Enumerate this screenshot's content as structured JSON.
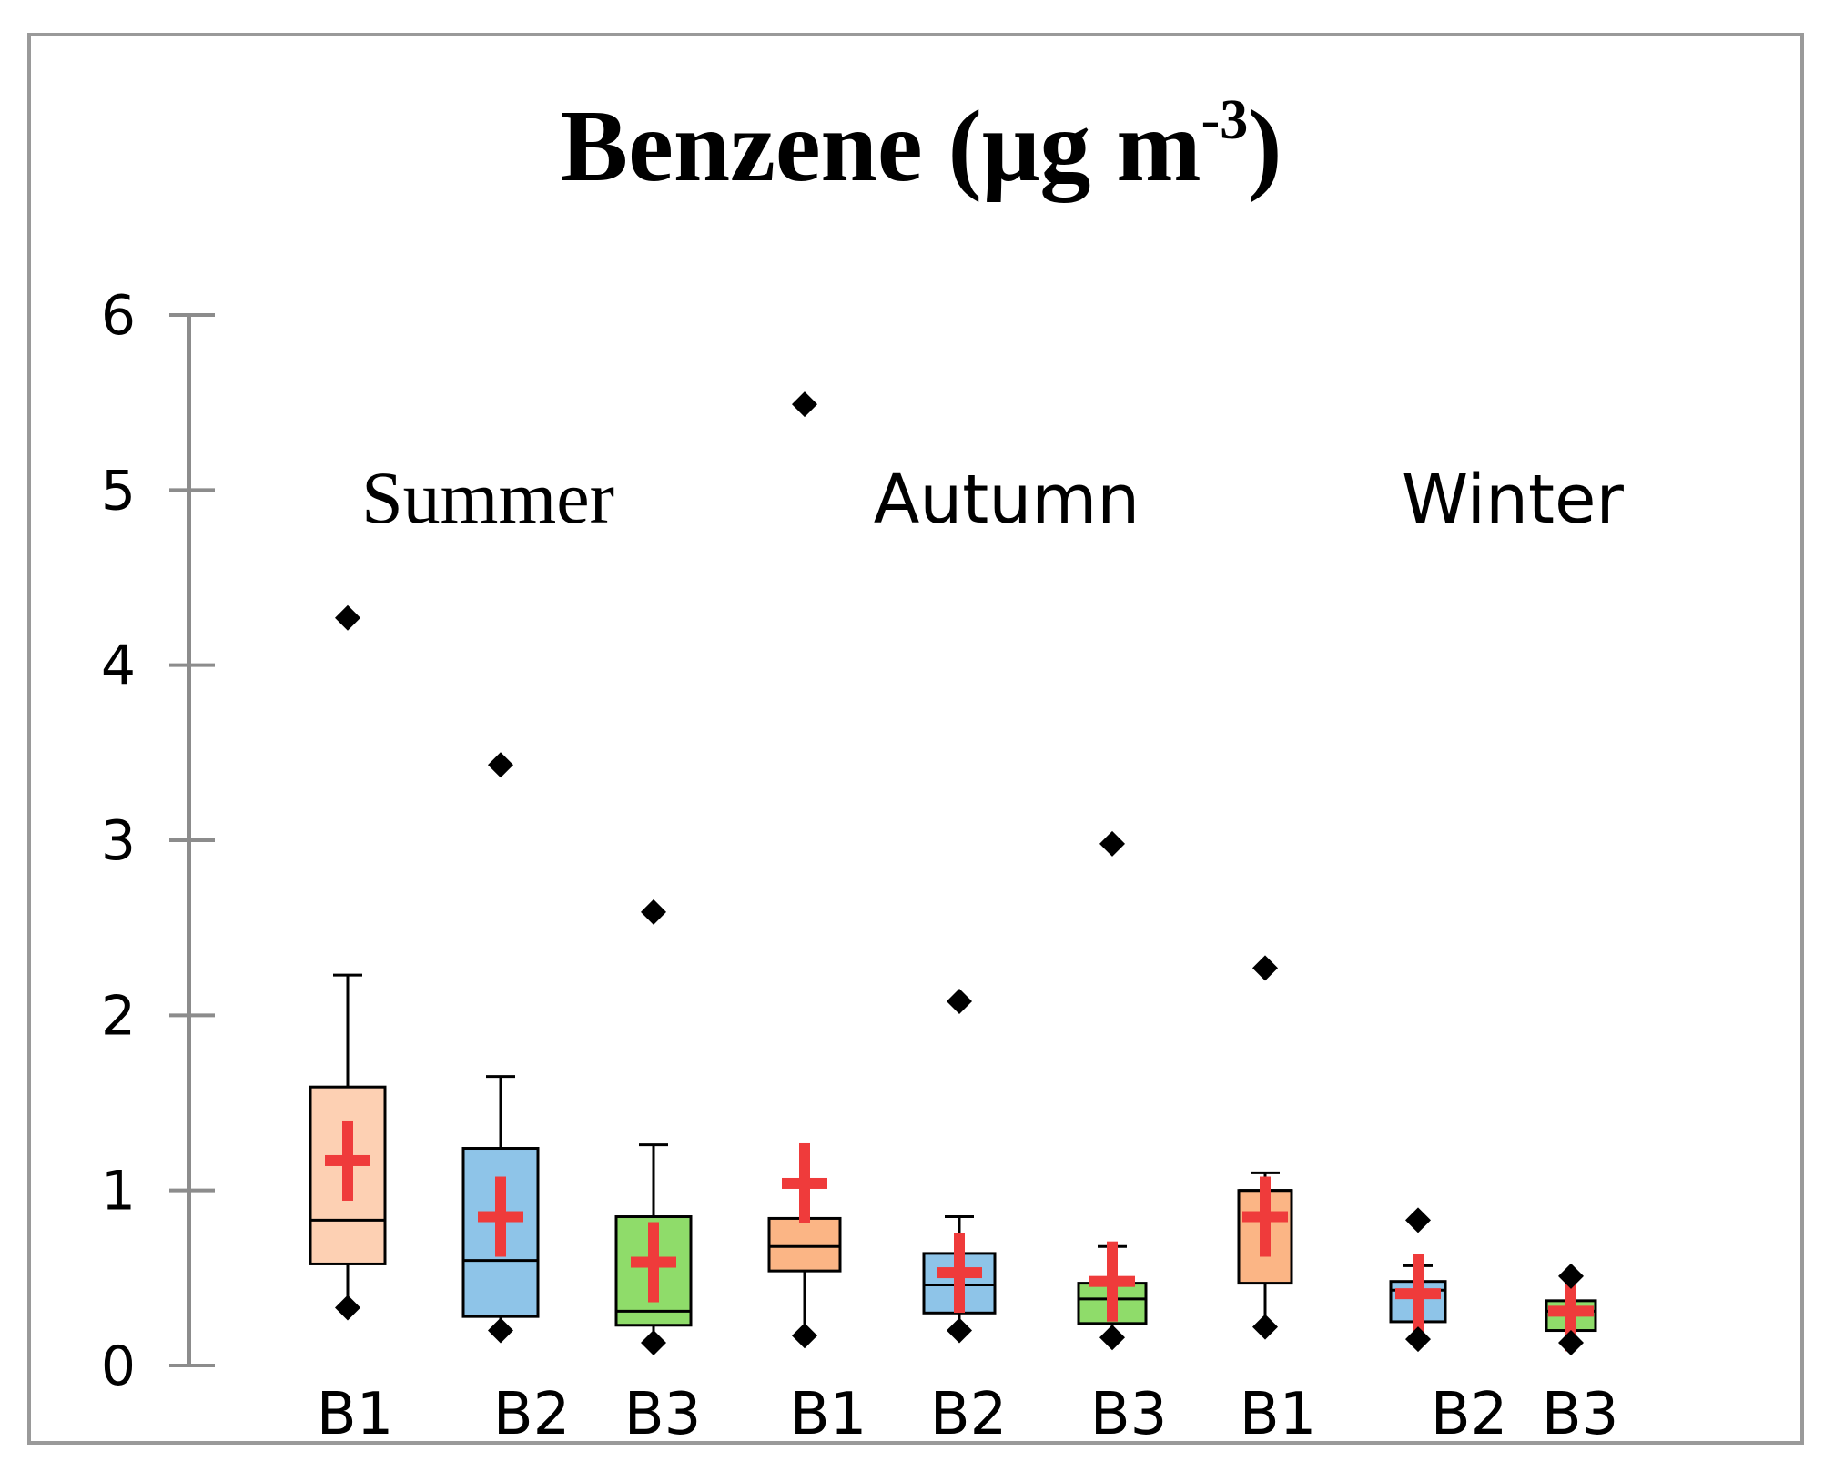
{
  "chart_data": {
    "type": "box",
    "title": "Benzene (μg m",
    "title_superscript": "-3",
    "title_close": ")",
    "ylim": [
      0,
      6
    ],
    "yticks": [
      0,
      1,
      2,
      3,
      4,
      5,
      6
    ],
    "yticklabels": [
      "0",
      "1",
      "2",
      "3",
      "4",
      "5",
      "6"
    ],
    "groups": [
      {
        "name": "Summer",
        "label_style": "serif"
      },
      {
        "name": "Autumn",
        "label_style": "sans"
      },
      {
        "name": "Winter",
        "label_style": "sans"
      }
    ],
    "colors": {
      "B1_summer": "#fdd0b3",
      "B1": "#fbb585",
      "B2": "#8ec4e8",
      "B3": "#8fdc6a",
      "mean_marker": "#ef3b3b",
      "axis": "#8c8c8c"
    },
    "boxes": [
      {
        "label": "B1",
        "group": "Summer",
        "color_key": "B1_summer",
        "whisker_low": 0.58,
        "q1": 0.58,
        "median": 0.83,
        "q3": 1.59,
        "whisker_high": 2.23,
        "mean": 1.17,
        "min": 0.33,
        "max": 4.27
      },
      {
        "label": "B2",
        "group": "Summer",
        "color_key": "B2",
        "whisker_low": 0.28,
        "q1": 0.28,
        "median": 0.6,
        "q3": 1.24,
        "whisker_high": 1.65,
        "mean": 0.85,
        "min": 0.2,
        "max": 3.43
      },
      {
        "label": "B3",
        "group": "Summer",
        "color_key": "B3",
        "whisker_low": 0.23,
        "q1": 0.23,
        "median": 0.31,
        "q3": 0.85,
        "whisker_high": 1.26,
        "mean": 0.59,
        "min": 0.13,
        "max": 2.59
      },
      {
        "label": "B1",
        "group": "Autumn",
        "color_key": "B1",
        "whisker_low": 0.54,
        "q1": 0.54,
        "median": 0.68,
        "q3": 0.84,
        "whisker_high": 0.84,
        "mean": 1.04,
        "min": 0.17,
        "max": 5.49
      },
      {
        "label": "B2",
        "group": "Autumn",
        "color_key": "B2",
        "whisker_low": 0.3,
        "q1": 0.3,
        "median": 0.46,
        "q3": 0.64,
        "whisker_high": 0.85,
        "mean": 0.53,
        "min": 0.2,
        "max": 2.08
      },
      {
        "label": "B3",
        "group": "Autumn",
        "color_key": "B3",
        "whisker_low": 0.24,
        "q1": 0.24,
        "median": 0.38,
        "q3": 0.47,
        "whisker_high": 0.68,
        "mean": 0.48,
        "min": 0.16,
        "max": 2.98
      },
      {
        "label": "B1",
        "group": "Winter",
        "color_key": "B1",
        "whisker_low": 0.47,
        "q1": 0.47,
        "median": 1.0,
        "q3": 1.0,
        "whisker_high": 1.1,
        "mean": 0.85,
        "min": 0.22,
        "max": 2.27
      },
      {
        "label": "B2",
        "group": "Winter",
        "color_key": "B2",
        "whisker_low": 0.25,
        "q1": 0.25,
        "median": 0.43,
        "q3": 0.48,
        "whisker_high": 0.57,
        "mean": 0.41,
        "min": 0.15,
        "max": 0.83
      },
      {
        "label": "B3",
        "group": "Winter",
        "color_key": "B3",
        "whisker_low": 0.2,
        "q1": 0.2,
        "median": 0.31,
        "q3": 0.37,
        "whisker_high": 0.37,
        "mean": 0.31,
        "min": 0.13,
        "max": 0.51
      }
    ]
  }
}
